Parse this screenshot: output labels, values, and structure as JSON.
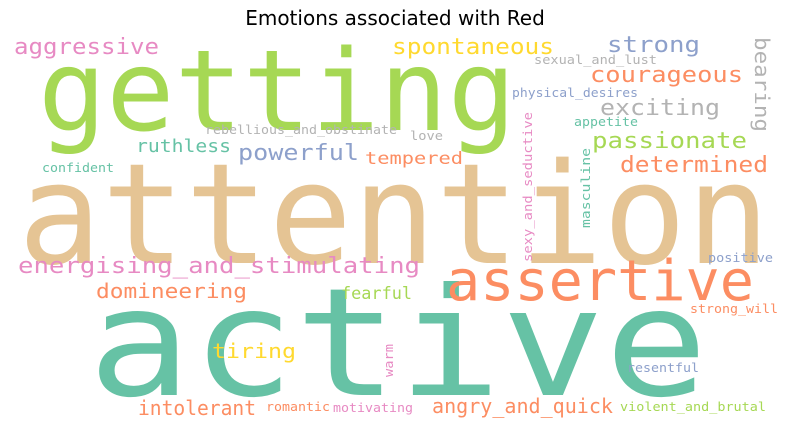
{
  "chart_data": {
    "type": "wordcloud",
    "title": "Emotions associated with Red",
    "colors": {
      "green": "#66c2a5",
      "orange": "#fc8d62",
      "blue": "#8da0cb",
      "pink": "#e78ac3",
      "lime": "#a6d854",
      "yellow": "#ffd92f",
      "tan": "#e5c494",
      "gray": "#b3b3b3"
    },
    "words": [
      {
        "text": "active",
        "color": "#66c2a5",
        "vertical": false
      },
      {
        "text": "attention",
        "color": "#e5c494",
        "vertical": false
      },
      {
        "text": "getting",
        "color": "#a6d854",
        "vertical": false
      },
      {
        "text": "assertive",
        "color": "#fc8d62",
        "vertical": false
      },
      {
        "text": "energising_and_stimulating",
        "color": "#e78ac3",
        "vertical": false
      },
      {
        "text": "aggressive",
        "color": "#e78ac3",
        "vertical": false
      },
      {
        "text": "spontaneous",
        "color": "#ffd92f",
        "vertical": false
      },
      {
        "text": "strong",
        "color": "#8da0cb",
        "vertical": false
      },
      {
        "text": "courageous",
        "color": "#fc8d62",
        "vertical": false
      },
      {
        "text": "exciting",
        "color": "#b3b3b3",
        "vertical": false
      },
      {
        "text": "passionate",
        "color": "#a6d854",
        "vertical": false
      },
      {
        "text": "powerful",
        "color": "#8da0cb",
        "vertical": false
      },
      {
        "text": "ruthless",
        "color": "#66c2a5",
        "vertical": false
      },
      {
        "text": "determined",
        "color": "#fc8d62",
        "vertical": false
      },
      {
        "text": "domineering",
        "color": "#fc8d62",
        "vertical": false
      },
      {
        "text": "tempered",
        "color": "#fc8d62",
        "vertical": false
      },
      {
        "text": "fearful",
        "color": "#a6d854",
        "vertical": false
      },
      {
        "text": "tiring",
        "color": "#ffd92f",
        "vertical": false
      },
      {
        "text": "intolerant",
        "color": "#fc8d62",
        "vertical": false
      },
      {
        "text": "angry_and_quick",
        "color": "#fc8d62",
        "vertical": false
      },
      {
        "text": "bearing",
        "color": "#b3b3b3",
        "vertical": true
      },
      {
        "text": "sexual_and_lust",
        "color": "#b3b3b3",
        "vertical": false
      },
      {
        "text": "physical_desires",
        "color": "#8da0cb",
        "vertical": false
      },
      {
        "text": "rebellious_and_obstinate",
        "color": "#b3b3b3",
        "vertical": false
      },
      {
        "text": "appetite",
        "color": "#66c2a5",
        "vertical": false
      },
      {
        "text": "love",
        "color": "#b3b3b3",
        "vertical": false
      },
      {
        "text": "confident",
        "color": "#66c2a5",
        "vertical": false
      },
      {
        "text": "sexy_and_seductive",
        "color": "#e78ac3",
        "vertical": true
      },
      {
        "text": "masculine",
        "color": "#66c2a5",
        "vertical": true
      },
      {
        "text": "positive",
        "color": "#8da0cb",
        "vertical": false
      },
      {
        "text": "strong_will",
        "color": "#fc8d62",
        "vertical": false
      },
      {
        "text": "warm",
        "color": "#e78ac3",
        "vertical": true
      },
      {
        "text": "resentful",
        "color": "#8da0cb",
        "vertical": false
      },
      {
        "text": "romantic",
        "color": "#fc8d62",
        "vertical": false
      },
      {
        "text": "motivating",
        "color": "#e78ac3",
        "vertical": false
      },
      {
        "text": "violent_and_brutal",
        "color": "#a6d854",
        "vertical": false
      }
    ]
  }
}
